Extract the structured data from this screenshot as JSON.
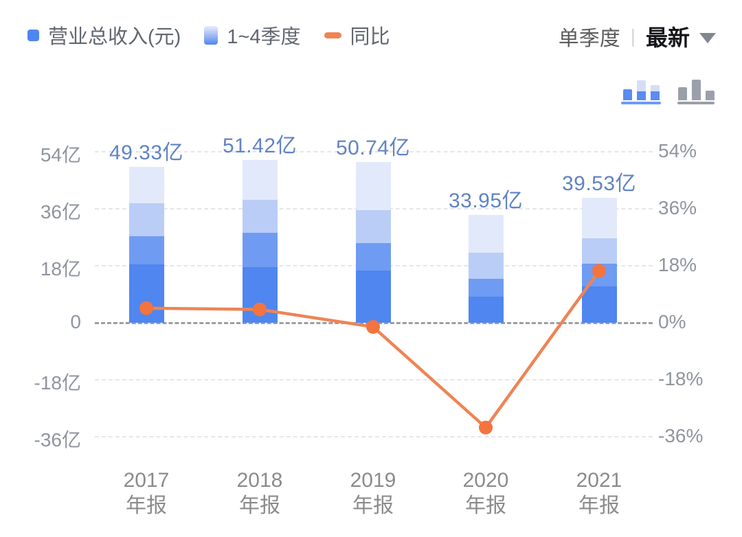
{
  "legend": {
    "items": [
      {
        "name": "total-revenue",
        "label": "营业总收入(元)",
        "swatch": "solid-blue-square",
        "color": "#4e86ef"
      },
      {
        "name": "quarters-stack",
        "label": "1~4季度",
        "swatch": "blue-gradient-bar",
        "gradient": [
          "#e6ecfb",
          "#4e86ef"
        ]
      },
      {
        "name": "yoy",
        "label": "同比",
        "swatch": "orange-dash",
        "color": "#f08452"
      }
    ]
  },
  "controls": {
    "period_label": "单季度",
    "separator": "|",
    "mode_label": "最新",
    "dropdown_icon": "triangle-down"
  },
  "toolbar": {
    "active_icon": "stacked-bar-chart-icon",
    "inactive_icon": "grouped-bar-chart-icon"
  },
  "colors": {
    "q1": "#4f86ef",
    "q2": "#6f9bf2",
    "q3": "#b9cdf7",
    "q4": "#e2e9fa",
    "value_label": "#6083c4",
    "line": "#ee8455",
    "point": "#f3743e",
    "axis_text": "#8f959e",
    "gridline": "#e4e6ea",
    "zero_line": "#9b9ea4"
  },
  "chart_data": {
    "type": "bar",
    "subtype": "stacked-bars-with-yoy-line",
    "categories": [
      "2017年报",
      "2018年报",
      "2019年报",
      "2020年报",
      "2021年报"
    ],
    "category_lines": [
      {
        "line1": "2017",
        "line2": "年报"
      },
      {
        "line1": "2018",
        "line2": "年报"
      },
      {
        "line1": "2019",
        "line2": "年报"
      },
      {
        "line1": "2020",
        "line2": "年报"
      },
      {
        "line1": "2021",
        "line2": "年报"
      }
    ],
    "totals": [
      49.33,
      51.42,
      50.74,
      33.95,
      39.53
    ],
    "total_labels": [
      "49.33亿",
      "51.42亿",
      "50.74亿",
      "33.95亿",
      "39.53亿"
    ],
    "series": [
      {
        "name": "Q1",
        "values": [
          18.4,
          17.5,
          16.4,
          8.2,
          11.4
        ],
        "color": "#4f86ef"
      },
      {
        "name": "Q2",
        "values": [
          8.8,
          10.9,
          8.8,
          5.8,
          7.2
        ],
        "color": "#6f9bf2"
      },
      {
        "name": "Q3",
        "values": [
          10.5,
          10.3,
          10.3,
          8.2,
          8.1
        ],
        "color": "#b9cdf7"
      },
      {
        "name": "Q4",
        "values": [
          11.6,
          12.7,
          15.3,
          11.8,
          12.9
        ],
        "color": "#e2e9fa"
      }
    ],
    "line_series": {
      "name": "同比",
      "values": [
        4.6,
        4.2,
        -1.3,
        -33.1,
        16.4
      ],
      "unit": "%"
    },
    "left_axis": {
      "unit": "亿",
      "ticks": [
        54,
        36,
        18,
        0,
        -18,
        -36
      ],
      "labels": [
        "54亿",
        "36亿",
        "18亿",
        "0",
        "-18亿",
        "-36亿"
      ]
    },
    "right_axis": {
      "unit": "%",
      "ticks": [
        54,
        36,
        18,
        0,
        -18,
        -36
      ],
      "labels": [
        "54%",
        "36%",
        "18%",
        "0%",
        "-18%",
        "-36%"
      ]
    },
    "ylim_left": [
      -36,
      54
    ],
    "ylim_right": [
      -36,
      54
    ],
    "grid": "horizontal-dashed",
    "legend_position": "top-left"
  }
}
